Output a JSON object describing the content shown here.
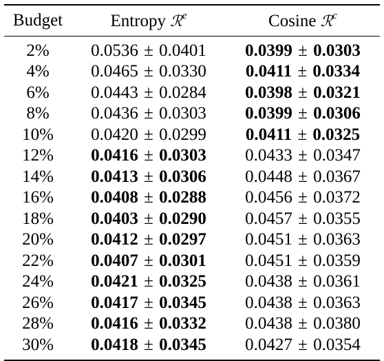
{
  "header": {
    "budget": "Budget",
    "entropy_label": "Entropy",
    "entropy_symbol": "ℛ",
    "entropy_sup": "e",
    "cosine_label": "Cosine",
    "cosine_symbol": "ℛ",
    "cosine_sup": "c"
  },
  "pm_sign": "±",
  "rows": [
    {
      "budget": "2%",
      "entropy": {
        "mean": "0.0536",
        "std": "0.0401",
        "best": false
      },
      "cosine": {
        "mean": "0.0399",
        "std": "0.0303",
        "best": true
      }
    },
    {
      "budget": "4%",
      "entropy": {
        "mean": "0.0465",
        "std": "0.0330",
        "best": false
      },
      "cosine": {
        "mean": "0.0411",
        "std": "0.0334",
        "best": true
      }
    },
    {
      "budget": "6%",
      "entropy": {
        "mean": "0.0443",
        "std": "0.0284",
        "best": false
      },
      "cosine": {
        "mean": "0.0398",
        "std": "0.0321",
        "best": true
      }
    },
    {
      "budget": "8%",
      "entropy": {
        "mean": "0.0436",
        "std": "0.0303",
        "best": false
      },
      "cosine": {
        "mean": "0.0399",
        "std": "0.0306",
        "best": true
      }
    },
    {
      "budget": "10%",
      "entropy": {
        "mean": "0.0420",
        "std": "0.0299",
        "best": false
      },
      "cosine": {
        "mean": "0.0411",
        "std": "0.0325",
        "best": true
      }
    },
    {
      "budget": "12%",
      "entropy": {
        "mean": "0.0416",
        "std": "0.0303",
        "best": true
      },
      "cosine": {
        "mean": "0.0433",
        "std": "0.0347",
        "best": false
      }
    },
    {
      "budget": "14%",
      "entropy": {
        "mean": "0.0413",
        "std": "0.0306",
        "best": true
      },
      "cosine": {
        "mean": "0.0448",
        "std": "0.0367",
        "best": false
      }
    },
    {
      "budget": "16%",
      "entropy": {
        "mean": "0.0408",
        "std": "0.0288",
        "best": true
      },
      "cosine": {
        "mean": "0.0456",
        "std": "0.0372",
        "best": false
      }
    },
    {
      "budget": "18%",
      "entropy": {
        "mean": "0.0403",
        "std": "0.0290",
        "best": true
      },
      "cosine": {
        "mean": "0.0457",
        "std": "0.0355",
        "best": false
      }
    },
    {
      "budget": "20%",
      "entropy": {
        "mean": "0.0412",
        "std": "0.0297",
        "best": true
      },
      "cosine": {
        "mean": "0.0451",
        "std": "0.0363",
        "best": false
      }
    },
    {
      "budget": "22%",
      "entropy": {
        "mean": "0.0407",
        "std": "0.0301",
        "best": true
      },
      "cosine": {
        "mean": "0.0451",
        "std": "0.0359",
        "best": false
      }
    },
    {
      "budget": "24%",
      "entropy": {
        "mean": "0.0421",
        "std": "0.0325",
        "best": true
      },
      "cosine": {
        "mean": "0.0438",
        "std": "0.0361",
        "best": false
      }
    },
    {
      "budget": "26%",
      "entropy": {
        "mean": "0.0417",
        "std": "0.0345",
        "best": true
      },
      "cosine": {
        "mean": "0.0438",
        "std": "0.0363",
        "best": false
      }
    },
    {
      "budget": "28%",
      "entropy": {
        "mean": "0.0416",
        "std": "0.0332",
        "best": true
      },
      "cosine": {
        "mean": "0.0438",
        "std": "0.0380",
        "best": false
      }
    },
    {
      "budget": "30%",
      "entropy": {
        "mean": "0.0418",
        "std": "0.0345",
        "best": true
      },
      "cosine": {
        "mean": "0.0427",
        "std": "0.0354",
        "best": false
      }
    }
  ]
}
